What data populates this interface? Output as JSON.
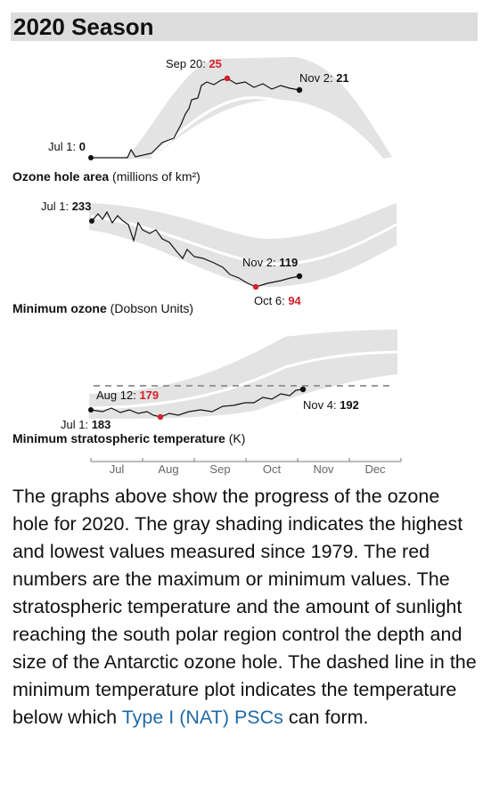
{
  "header": {
    "title": "2020 Season"
  },
  "graphs": [
    {
      "annotations": [
        {
          "label": "Jul 1:",
          "value": 0
        },
        {
          "label": "Sep 20:",
          "value": 25,
          "color": "#d3202b"
        },
        {
          "label": "Nov 2:",
          "value": 21
        }
      ],
      "caption": {
        "bold": "Ozone hole area",
        "rest": "(millions of km²)"
      }
    },
    {
      "annotations": [
        {
          "label": "Jul 1:",
          "value": 233
        },
        {
          "label": "Nov 2:",
          "value": 119
        },
        {
          "label": "Oct 6:",
          "value": 94,
          "color": "#d3202b"
        }
      ],
      "caption": {
        "bold": "Minimum ozone",
        "rest": "(Dobson Units)"
      }
    },
    {
      "annotations": [
        {
          "label": "Aug 12:",
          "value": 179,
          "color": "#d3202b"
        },
        {
          "label": "Jul 1:",
          "value": 183
        },
        {
          "label": "Nov 4:",
          "value": 192
        }
      ],
      "caption": {
        "bold": "Minimum stratospheric temperature",
        "rest": "(K)"
      }
    }
  ],
  "months": [
    "Jul",
    "Aug",
    "Sep",
    "Oct",
    "Nov",
    "Dec"
  ],
  "paragraph": {
    "before": "The graphs above show the progress of the ozone hole for 2020. The gray shading indicates the highest and lowest values measured since 1979. The red numbers are the maximum or minimum values. The stratospheric temperature and the amount of sunlight reaching the south polar region control the depth and size of the Antarctic ozone hole. The dashed line in the minimum temperature plot indicates the temperature below which",
    "link": "Type I (NAT) PSCs",
    "after": "can form."
  }
}
